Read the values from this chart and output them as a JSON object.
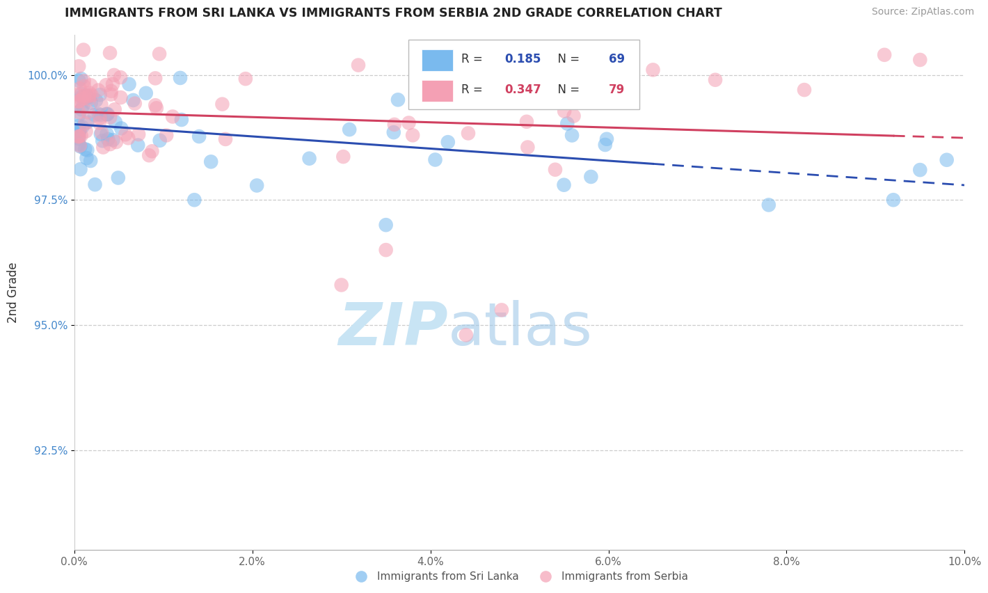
{
  "title": "IMMIGRANTS FROM SRI LANKA VS IMMIGRANTS FROM SERBIA 2ND GRADE CORRELATION CHART",
  "source": "Source: ZipAtlas.com",
  "ylabel": "2nd Grade",
  "legend_label_blue": "Immigrants from Sri Lanka",
  "legend_label_pink": "Immigrants from Serbia",
  "R_blue": 0.185,
  "N_blue": 69,
  "R_pink": 0.347,
  "N_pink": 79,
  "xlim": [
    0.0,
    0.1
  ],
  "ylim": [
    0.905,
    1.008
  ],
  "xtick_labels": [
    "0.0%",
    "2.0%",
    "4.0%",
    "6.0%",
    "8.0%",
    "10.0%"
  ],
  "xtick_vals": [
    0.0,
    0.02,
    0.04,
    0.06,
    0.08,
    0.1
  ],
  "ytick_labels": [
    "92.5%",
    "95.0%",
    "97.5%",
    "100.0%"
  ],
  "ytick_vals": [
    0.925,
    0.95,
    0.975,
    1.0
  ],
  "color_blue": "#7ABAEE",
  "color_pink": "#F4A0B4",
  "line_color_blue": "#2B4DB0",
  "line_color_pink": "#D04060",
  "background_color": "#FFFFFF",
  "watermark_zip": "ZIP",
  "watermark_atlas": "atlas",
  "watermark_color": "#C8E4F4",
  "seed": 42
}
